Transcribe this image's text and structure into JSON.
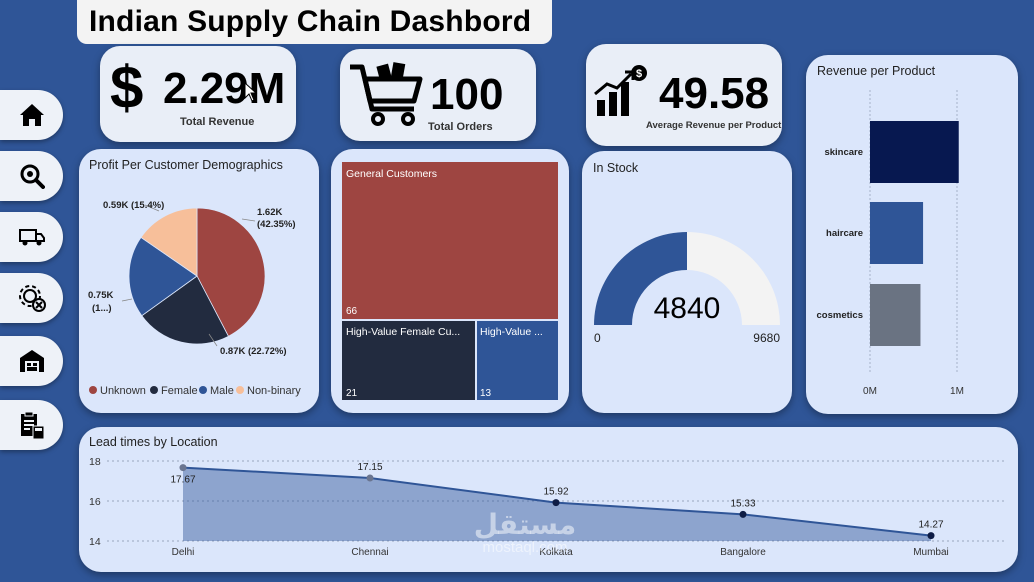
{
  "title": "Indian Supply Chain Dashbord",
  "nav": [
    {
      "name": "home-icon"
    },
    {
      "name": "search-analytics-icon"
    },
    {
      "name": "delivery-truck-icon"
    },
    {
      "name": "settings-gear-icon"
    },
    {
      "name": "warehouse-icon"
    },
    {
      "name": "clipboard-calculator-icon"
    }
  ],
  "kpis": {
    "revenue": {
      "symbol": "$",
      "value": "2.29M",
      "label": "Total Revenue"
    },
    "orders": {
      "value": "100",
      "label": "Total Orders"
    },
    "avg": {
      "value": "49.58",
      "label": "Average Revenue per Product"
    }
  },
  "pie": {
    "title": "Profit Per Customer Demographics",
    "labels": {
      "unknown": [
        "1.62K",
        "(42.35%)"
      ],
      "female": "0.87K (22.72%)",
      "male": [
        "0.75K",
        "(1...)"
      ],
      "nonbinary": "0.59K (15.4%)"
    },
    "legend": [
      "Unknown",
      "Female",
      "Male",
      "Non-binary"
    ],
    "colors": [
      "#9e4541",
      "#222b3f",
      "#2f5597",
      "#f7bf9a"
    ]
  },
  "treemap": {
    "items": [
      {
        "label": "General Customers",
        "value": "66"
      },
      {
        "label": "High-Value Female Cu...",
        "value": "21"
      },
      {
        "label": "High-Value ...",
        "value": "13"
      }
    ]
  },
  "gauge": {
    "title": "In Stock",
    "value": "4840",
    "min": "0",
    "max": "9680",
    "fraction": 0.5
  },
  "chart_data": [
    {
      "type": "bar",
      "title": "Revenue per Product",
      "categories": [
        "skincare",
        "haircare",
        "cosmetics"
      ],
      "values": [
        1.02,
        0.61,
        0.58
      ],
      "unit": "M",
      "xlim": [
        0,
        1.1
      ],
      "xticks": [
        "0M",
        "1M"
      ],
      "colors": [
        "#071850",
        "#2f5597",
        "#6a7382"
      ]
    },
    {
      "type": "area",
      "title": "Lead times by Location",
      "categories": [
        "Delhi",
        "Chennai",
        "Kolkata",
        "Bangalore",
        "Mumbai"
      ],
      "values": [
        17.67,
        17.15,
        15.92,
        15.33,
        14.27
      ],
      "value_labels": [
        "17.67",
        "17.15",
        "15.92",
        "15.33",
        "14.27"
      ],
      "ylim": [
        14,
        18
      ],
      "yticks": [
        "18",
        "16",
        "14"
      ],
      "grid": true
    }
  ],
  "watermark": {
    "arabic": "مستقل",
    "latin": "mostaql.com"
  }
}
